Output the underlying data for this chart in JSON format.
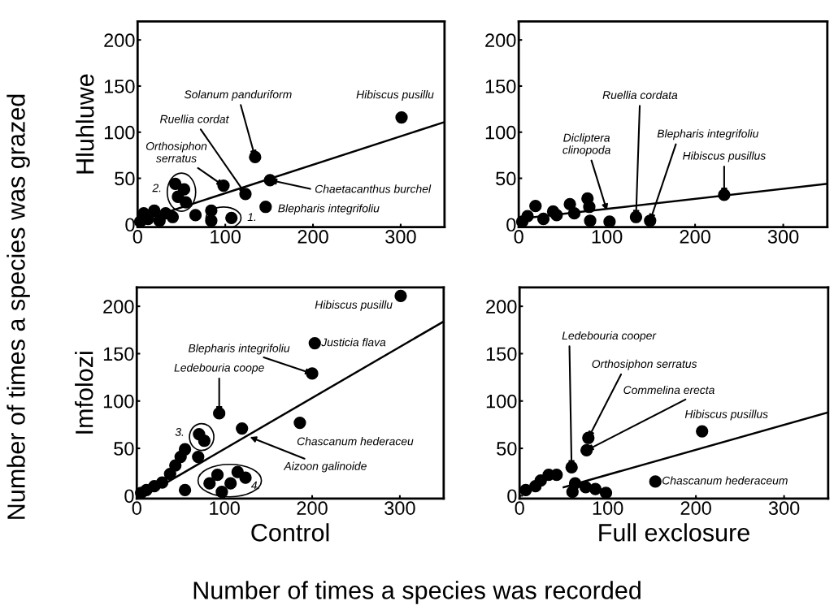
{
  "chart_data": [
    {
      "type": "scatter",
      "ylabel": "Hluhluwe",
      "xlim": [
        0,
        350
      ],
      "ylim": [
        -3,
        220
      ],
      "xticks": [
        0,
        100,
        200,
        300
      ],
      "yticks": [
        0,
        50,
        100,
        150,
        200
      ],
      "grid": false,
      "legend": false,
      "marker": "circle",
      "series": [
        {
          "color": "#000000",
          "x": [
            301,
            134,
            98,
            123,
            151,
            146,
            43,
            53,
            46,
            55,
            84,
            107,
            84,
            7,
            19,
            32,
            66,
            3,
            12,
            25,
            40
          ],
          "values": [
            116,
            73,
            42,
            33,
            48,
            19,
            44,
            38,
            30,
            24,
            15,
            7,
            4,
            12,
            15,
            12,
            10,
            3,
            6,
            4,
            8
          ]
        },
        {
          "type": "line",
          "marker": "none",
          "color": "#000000",
          "x": [
            0,
            350
          ],
          "values": [
            3,
            111
          ]
        }
      ],
      "annotations": [
        "Number of times a species was grazed",
        "Number of times a species was recorded",
        {
          "text": "Solanum panduriform",
          "x": 134,
          "y": 73
        },
        {
          "text": "Hibiscus pusillu",
          "x": 301,
          "y": 116
        },
        {
          "text": "Ruellia cordat",
          "x": 123,
          "y": 33
        },
        {
          "text": "Orthosiphon\nserratus",
          "x": 98,
          "y": 42
        },
        {
          "text": "Chaetacanthus burchel",
          "x": 151,
          "y": 48
        },
        {
          "text": "Blepharis integrifoliu",
          "x": 146,
          "y": 19
        },
        {
          "text": "2.",
          "x": 50,
          "y": 35
        },
        {
          "text": "1.",
          "x": 98,
          "y": 7
        }
      ]
    },
    {
      "type": "scatter",
      "xlim": [
        0,
        350
      ],
      "ylim": [
        -3,
        220
      ],
      "xticks": [
        0,
        100,
        200,
        300
      ],
      "yticks": [
        0,
        50,
        100,
        150,
        200
      ],
      "grid": false,
      "legend": false,
      "marker": "circle",
      "series": [
        {
          "color": "#000000",
          "x": [
            233,
            133,
            149,
            103,
            19,
            39,
            58,
            78,
            80,
            63,
            43,
            10,
            81,
            4,
            28
          ],
          "values": [
            32,
            8,
            4,
            3,
            20,
            14,
            22,
            28,
            19,
            12,
            10,
            9,
            4,
            3,
            6
          ]
        },
        {
          "type": "line",
          "marker": "none",
          "color": "#000000",
          "x": [
            0,
            350
          ],
          "values": [
            6,
            44
          ]
        }
      ],
      "annotations": [
        {
          "text": "Dicliptera\nclinopoda",
          "x": 100,
          "y": 15
        },
        {
          "text": "Ruellia cordata",
          "x": 133,
          "y": 8
        },
        {
          "text": "Blepharis integrifoliu",
          "x": 149,
          "y": 4
        },
        {
          "text": "Hibiscus pusillus",
          "x": 233,
          "y": 32
        }
      ]
    },
    {
      "type": "scatter",
      "ylabel": "Imfolozi",
      "xlabel": "Control",
      "xlim": [
        0,
        350
      ],
      "ylim": [
        -3,
        220
      ],
      "xticks": [
        0,
        100,
        200,
        300
      ],
      "yticks": [
        0,
        50,
        100,
        150,
        200
      ],
      "grid": false,
      "legend": false,
      "marker": "circle",
      "series": [
        {
          "color": "#000000",
          "x": [
            301,
            203,
            200,
            94,
            120,
            186,
            71,
            77,
            70,
            55,
            50,
            44,
            38,
            29,
            20,
            11,
            5,
            55,
            83,
            92,
            107,
            115,
            124,
            97
          ],
          "values": [
            211,
            161,
            129,
            87,
            71,
            77,
            65,
            58,
            41,
            49,
            41,
            32,
            23,
            14,
            10,
            6,
            3,
            6,
            13,
            22,
            13,
            25,
            19,
            4
          ]
        },
        {
          "type": "line",
          "marker": "none",
          "color": "#000000",
          "x": [
            10,
            350
          ],
          "values": [
            1,
            184
          ]
        }
      ],
      "annotations": [
        {
          "text": "Hibiscus pusillu",
          "x": 301,
          "y": 211
        },
        {
          "text": "Justicia flava",
          "x": 203,
          "y": 161
        },
        {
          "text": "Blepharis integrifoliu",
          "x": 200,
          "y": 129
        },
        {
          "text": "Ledebouria coope",
          "x": 94,
          "y": 87
        },
        {
          "text": "Chascanum hederaceu",
          "x": 186,
          "y": 77
        },
        {
          "text": "Aizoon galinoide",
          "x": 129,
          "y": 62
        },
        {
          "text": "3.",
          "x": 74,
          "y": 62
        },
        {
          "text": "4.",
          "x": 106,
          "y": 16
        }
      ]
    },
    {
      "type": "scatter",
      "xlabel": "Full exclosure",
      "xlim": [
        0,
        350
      ],
      "ylim": [
        -3,
        220
      ],
      "xticks": [
        0,
        100,
        200,
        300
      ],
      "yticks": [
        0,
        50,
        100,
        150,
        200
      ],
      "grid": false,
      "legend": false,
      "marker": "circle",
      "series": [
        {
          "color": "#000000",
          "x": [
            59,
            78,
            76,
            207,
            154,
            24,
            33,
            42,
            18,
            7,
            63,
            75,
            86,
            98,
            60
          ],
          "values": [
            30,
            61,
            48,
            68,
            15,
            16,
            22,
            22,
            10,
            6,
            13,
            9,
            7,
            3,
            4
          ]
        },
        {
          "type": "line",
          "marker": "none",
          "color": "#000000",
          "x": [
            50,
            350
          ],
          "values": [
            9,
            88
          ]
        }
      ],
      "annotations": [
        {
          "text": "Ledebouria cooper",
          "x": 59,
          "y": 30
        },
        {
          "text": "Orthosiphon serratus",
          "x": 78,
          "y": 61
        },
        {
          "text": "Commelina erecta",
          "x": 76,
          "y": 48
        },
        {
          "text": "Hibiscus pusillus",
          "x": 207,
          "y": 68
        },
        {
          "text": "Chascanum hederaceum",
          "x": 154,
          "y": 15
        }
      ]
    }
  ]
}
